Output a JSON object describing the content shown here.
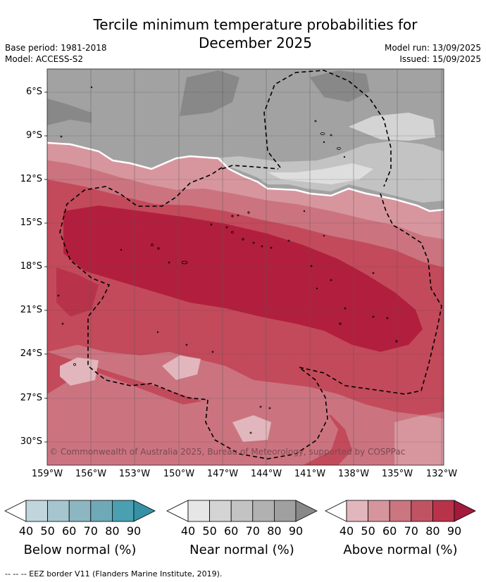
{
  "title_line1": "Tercile minimum temperature probabilities for",
  "title_line2": "December 2025",
  "base_period": "Base period: 1981-2018",
  "model": "Model: ACCESS-S2",
  "model_run": "Model run: 13/09/2025",
  "issued": "Issued: 15/09/2025",
  "copyright": "© Commonwealth of Australia 2025, Bureau of Meteorology, supported by COSPPac",
  "lat_labels": [
    "6°S",
    "9°S",
    "12°S",
    "15°S",
    "18°S",
    "21°S",
    "24°S",
    "27°S",
    "30°S"
  ],
  "lon_labels": [
    "159°W",
    "156°W",
    "153°W",
    "150°W",
    "147°W",
    "144°W",
    "141°W",
    "138°W",
    "135°W",
    "132°W"
  ],
  "legend": {
    "ticks": [
      "40",
      "50",
      "60",
      "70",
      "80",
      "90"
    ],
    "below": {
      "label": "Below normal (%)",
      "colors": [
        "#c0d6dc",
        "#a6c6cf",
        "#8bb6c2",
        "#6fa8b7",
        "#4a9fb1"
      ]
    },
    "near": {
      "label": "Near normal (%)",
      "colors": [
        "#e6e6e6",
        "#d4d4d4",
        "#c3c3c3",
        "#b1b1b1",
        "#a0a0a0"
      ]
    },
    "above": {
      "label": "Above normal (%)",
      "colors": [
        "#e2b6bd",
        "#d6959c",
        "#ca7580",
        "#c05362",
        "#b8334a"
      ]
    }
  },
  "footnote": "--  --  -- EEZ border V11 (Flanders Marine Institute, 2019)."
}
